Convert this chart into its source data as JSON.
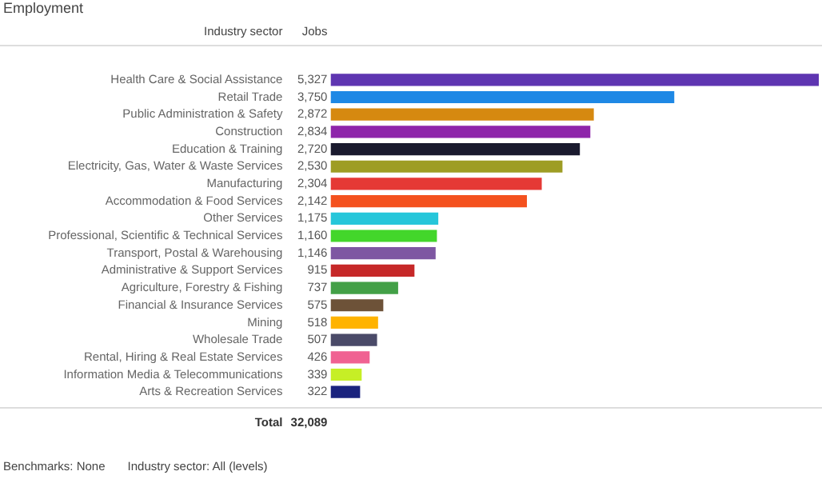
{
  "chart_data": {
    "type": "bar",
    "orientation": "horizontal",
    "title": "Employment",
    "ylabel": "Industry sector",
    "categories": [
      "Health Care & Social Assistance",
      "Retail Trade",
      "Public Administration & Safety",
      "Construction",
      "Education & Training",
      "Electricity, Gas, Water & Waste Services",
      "Manufacturing",
      "Accommodation & Food Services",
      "Other Services",
      "Professional, Scientific & Technical Services",
      "Transport, Postal & Warehousing",
      "Administrative & Support Services",
      "Agriculture, Forestry & Fishing",
      "Financial & Insurance Services",
      "Mining",
      "Wholesale Trade",
      "Rental, Hiring & Real Estate Services",
      "Information Media & Telecommunications",
      "Arts & Recreation Services"
    ],
    "values": [
      5327,
      3750,
      2872,
      2834,
      2720,
      2530,
      2304,
      2142,
      1175,
      1160,
      1146,
      915,
      737,
      575,
      518,
      507,
      426,
      339,
      322
    ],
    "value_labels": [
      "5,327",
      "3,750",
      "2,872",
      "2,834",
      "2,720",
      "2,530",
      "2,304",
      "2,142",
      "1,175",
      "1,160",
      "1,146",
      "915",
      "737",
      "575",
      "518",
      "507",
      "426",
      "339",
      "322"
    ],
    "colors": [
      "#5e35b1",
      "#1e88e5",
      "#d68910",
      "#8e24aa",
      "#1a1a2e",
      "#9e9d24",
      "#e53935",
      "#f4511e",
      "#26c6da",
      "#43d62b",
      "#7e57a2",
      "#c62828",
      "#43a047",
      "#6d5238",
      "#ffb300",
      "#4a4a68",
      "#f06292",
      "#c6ef26",
      "#1a237e"
    ],
    "annotations": [
      "Jobs",
      "Total",
      "32,089",
      "Benchmarks: None",
      "Industry sector: All (levels)"
    ],
    "grid": false,
    "legend": false
  }
}
